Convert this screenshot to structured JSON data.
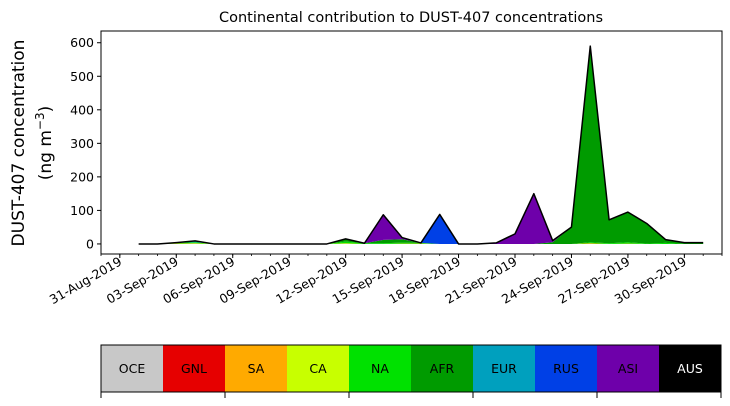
{
  "chart_data": {
    "type": "area",
    "stacked": true,
    "title": "Continental contribution to DUST-407 concentrations",
    "ylabel_line1": "DUST-407 concentration",
    "ylabel_line2_prefix": "(ng m",
    "ylabel_line2_exp": "−3",
    "ylabel_line2_suffix": ")",
    "xlabel": "",
    "x_start": "2019-09-01",
    "x": [
      "2019-09-01",
      "2019-09-02",
      "2019-09-03",
      "2019-09-04",
      "2019-09-05",
      "2019-09-06",
      "2019-09-07",
      "2019-09-08",
      "2019-09-09",
      "2019-09-10",
      "2019-09-11",
      "2019-09-12",
      "2019-09-13",
      "2019-09-14",
      "2019-09-15",
      "2019-09-16",
      "2019-09-17",
      "2019-09-18",
      "2019-09-19",
      "2019-09-20",
      "2019-09-21",
      "2019-09-22",
      "2019-09-23",
      "2019-09-24",
      "2019-09-25",
      "2019-09-26",
      "2019-09-27",
      "2019-09-28",
      "2019-09-29",
      "2019-09-30",
      "2019-10-01"
    ],
    "xlim": [
      "2019-08-30",
      "2019-10-02"
    ],
    "ylim": [
      -30,
      635
    ],
    "y_ticks": [
      0,
      100,
      200,
      300,
      400,
      500,
      600
    ],
    "y_tick_labels": [
      "0",
      "100",
      "200",
      "300",
      "400",
      "500",
      "600"
    ],
    "x_ticks": [
      "2019-08-31",
      "2019-09-03",
      "2019-09-06",
      "2019-09-09",
      "2019-09-12",
      "2019-09-15",
      "2019-09-18",
      "2019-09-21",
      "2019-09-24",
      "2019-09-27",
      "2019-09-30"
    ],
    "x_tick_labels": [
      "31-Aug-2019",
      "03-Sep-2019",
      "06-Sep-2019",
      "09-Sep-2019",
      "12-Sep-2019",
      "15-Sep-2019",
      "18-Sep-2019",
      "21-Sep-2019",
      "24-Sep-2019",
      "27-Sep-2019",
      "30-Sep-2019"
    ],
    "series": [
      {
        "name": "OCE",
        "color": "#c8c8c8",
        "values": [
          0,
          0,
          0,
          0,
          0,
          0,
          0,
          0,
          0,
          0,
          0,
          0,
          0,
          0,
          0,
          0,
          0,
          0,
          0,
          0,
          0,
          0,
          0,
          0,
          0,
          0,
          0,
          0,
          0,
          0,
          0
        ]
      },
      {
        "name": "GNL",
        "color": "#e60000",
        "values": [
          0,
          0,
          0,
          0,
          0,
          0,
          0,
          0,
          0,
          0,
          0,
          0,
          0,
          0,
          0,
          0,
          0,
          0,
          0,
          0,
          0,
          0,
          0,
          0,
          0,
          0,
          0,
          0,
          0,
          0,
          0
        ]
      },
      {
        "name": "SA",
        "color": "#ffaa00",
        "values": [
          0,
          0,
          1,
          1,
          0,
          0,
          0,
          0,
          0,
          0,
          0,
          1,
          0,
          0,
          1,
          1,
          0,
          0,
          0,
          0,
          0,
          0,
          0,
          0,
          2,
          0,
          1,
          0,
          0,
          0,
          0
        ]
      },
      {
        "name": "CA",
        "color": "#c8ff00",
        "values": [
          0,
          0,
          0,
          1,
          0,
          0,
          0,
          0,
          0,
          0,
          0,
          1,
          0,
          0,
          0,
          0,
          0,
          0,
          0,
          0,
          0,
          0,
          0,
          0,
          0,
          0,
          0,
          0,
          0,
          0,
          0
        ]
      },
      {
        "name": "NA",
        "color": "#00e100",
        "values": [
          0,
          0,
          2,
          3,
          0,
          0,
          0,
          0,
          0,
          0,
          0,
          5,
          2,
          2,
          3,
          2,
          0,
          0,
          0,
          0,
          0,
          0,
          0,
          0,
          3,
          2,
          4,
          1,
          3,
          0,
          0
        ]
      },
      {
        "name": "AFR",
        "color": "#009b00",
        "values": [
          0,
          0,
          0,
          0,
          0,
          0,
          0,
          0,
          0,
          0,
          0,
          8,
          0,
          10,
          10,
          0,
          0,
          0,
          0,
          0,
          0,
          0,
          5,
          50,
          585,
          70,
          90,
          60,
          10,
          4,
          4
        ]
      },
      {
        "name": "EUR",
        "color": "#00a0be",
        "values": [
          0,
          0,
          1,
          4,
          0,
          0,
          0,
          0,
          0,
          0,
          0,
          0,
          0,
          0,
          0,
          0,
          0,
          0,
          0,
          0,
          0,
          0,
          0,
          0,
          0,
          0,
          0,
          0,
          0,
          0,
          0
        ]
      },
      {
        "name": "RUS",
        "color": "#0040e6",
        "values": [
          0,
          0,
          0,
          0,
          0,
          0,
          0,
          0,
          0,
          0,
          0,
          0,
          0,
          0,
          0,
          0,
          88,
          0,
          0,
          0,
          0,
          0,
          0,
          0,
          0,
          0,
          0,
          0,
          0,
          0,
          0
        ]
      },
      {
        "name": "ASI",
        "color": "#6e00aa",
        "values": [
          0,
          0,
          0,
          0,
          0,
          0,
          0,
          0,
          0,
          0,
          0,
          0,
          0,
          75,
          5,
          0,
          0,
          0,
          0,
          3,
          30,
          150,
          5,
          0,
          0,
          0,
          0,
          0,
          0,
          0,
          0
        ]
      },
      {
        "name": "AUS",
        "color": "#000000",
        "values": [
          0,
          0,
          0,
          0,
          0,
          0,
          0,
          0,
          0,
          0,
          0,
          0,
          0,
          0,
          0,
          0,
          0,
          0,
          0,
          0,
          0,
          0,
          0,
          0,
          0,
          0,
          0,
          0,
          0,
          0,
          0
        ]
      }
    ],
    "grid": false,
    "legend_placement": "bottom colorbar"
  }
}
